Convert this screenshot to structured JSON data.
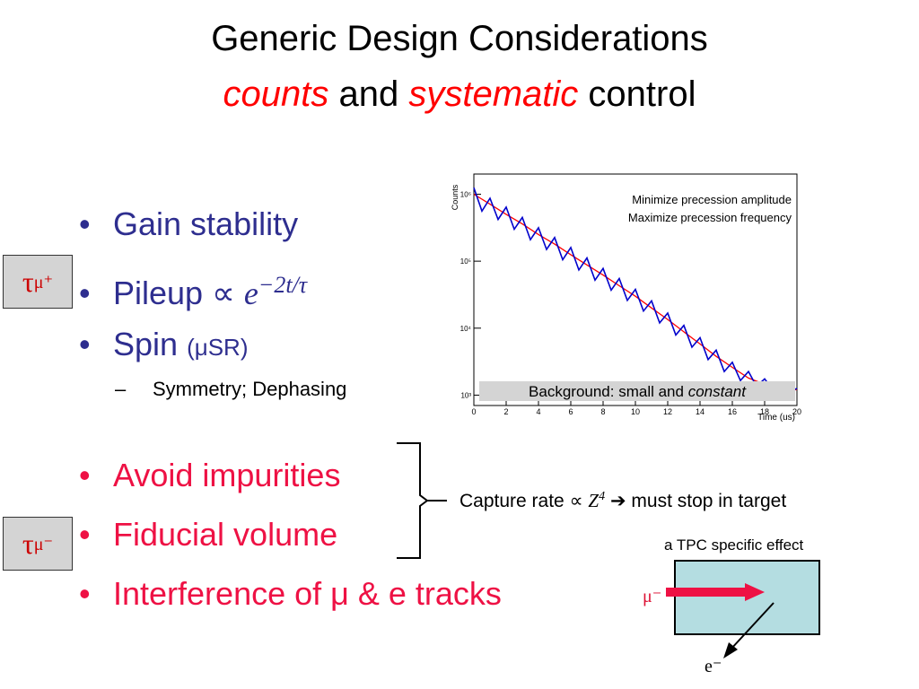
{
  "title": {
    "line1": "Generic Design Considerations",
    "counts": "counts",
    "and": "and",
    "systematic": "systematic",
    "control": "control"
  },
  "bullets_top": {
    "gain": "Gain stability",
    "pileup": "Pileup ∝",
    "pileup_base": "e",
    "pileup_exp": "−2t/τ",
    "spin": "Spin",
    "spin_paren": "(μSR)",
    "sub": "Symmetry; Dephasing"
  },
  "bullets_bottom": {
    "impurities": "Avoid impurities",
    "fiducial": "Fiducial volume",
    "interference": "Interference of μ & e tracks"
  },
  "tau_plus": {
    "tau": "τ",
    "sub": "μ⁺"
  },
  "tau_minus": {
    "tau": "τ",
    "sub": "μ⁻"
  },
  "capture": {
    "text1": "Capture rate ∝",
    "z": "Z",
    "z_exp": "4",
    "arrow": "➔",
    "text2": "must stop in target"
  },
  "tpc": {
    "label": "a TPC specific effect",
    "mu": "μ⁻",
    "e": "e⁻"
  },
  "colors": {
    "title_red": "#ff0000",
    "bullet_blue": "#2e2e8f",
    "bullet_red": "#ee1144",
    "tpc_fill": "#b4dde1"
  },
  "chart_data": {
    "type": "line",
    "xlabel": "Time (us)",
    "ylabel": "Counts",
    "xlim": [
      0,
      20
    ],
    "ylim": [
      700,
      2000000
    ],
    "yscale": "log",
    "xticks": [
      "0",
      "2",
      "4",
      "6",
      "8",
      "10",
      "12",
      "14",
      "16",
      "18",
      "20"
    ],
    "yticks": [
      "10³",
      "10⁴",
      "10⁵",
      "10⁶"
    ],
    "annotations": [
      "Minimize precession amplitude",
      "Maximize precession frequency"
    ],
    "background_note_prefix": "Background:  small and ",
    "background_note_em": "constant",
    "series": [
      {
        "color": "#ff0000",
        "x": [
          0,
          1,
          2,
          3,
          4,
          5,
          6,
          7,
          8,
          9,
          10,
          11,
          12,
          13,
          14,
          15,
          16,
          17,
          18,
          19,
          20
        ],
        "y": [
          1000000,
          710000,
          500000,
          360000,
          250000,
          180000,
          125000,
          88000,
          62000,
          43000,
          30000,
          20000,
          13500,
          8800,
          5800,
          3800,
          2600,
          1800,
          1450,
          1250,
          1200
        ]
      },
      {
        "color": "#0000cc",
        "note": "precessing",
        "x": [
          0,
          0.5,
          1,
          1.5,
          2,
          2.5,
          3,
          3.5,
          4,
          4.5,
          5,
          5.5,
          6,
          6.5,
          7,
          7.5,
          8,
          8.5,
          9,
          9.5,
          10,
          10.5,
          11,
          11.5,
          12,
          12.5,
          13,
          13.5,
          14,
          14.5,
          15,
          15.5,
          16,
          16.5,
          17,
          17.5,
          18,
          18.5,
          19,
          19.5,
          20
        ],
        "y": [
          1250000,
          560000,
          870000,
          420000,
          640000,
          300000,
          450000,
          210000,
          315000,
          150000,
          225000,
          105000,
          160000,
          74000,
          112000,
          52000,
          78000,
          37000,
          55000,
          26000,
          38000,
          18000,
          25500,
          12000,
          16800,
          7900,
          11000,
          5200,
          7200,
          3400,
          4700,
          2250,
          3100,
          1650,
          2250,
          1350,
          1750,
          1200,
          1450,
          1150,
          1250
        ]
      }
    ]
  }
}
